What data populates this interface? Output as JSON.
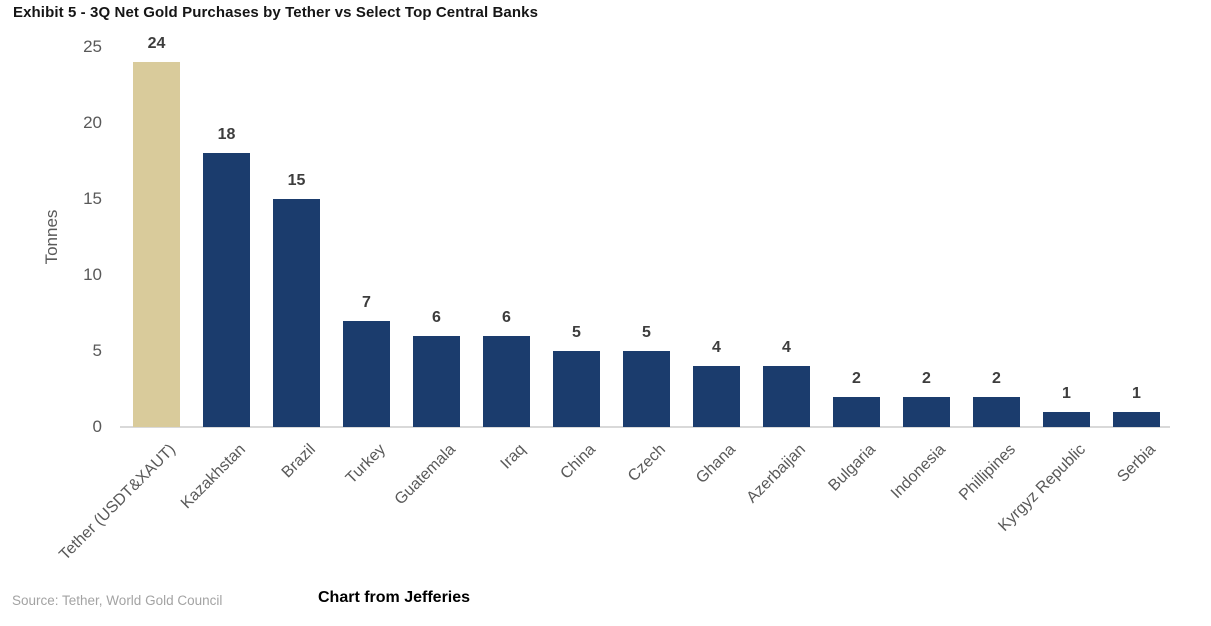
{
  "title": "Exhibit 5 - 3Q Net Gold Purchases by Tether vs Select Top Central Banks",
  "footer": {
    "source": "Source: Tether, World Gold Council",
    "credit": "Chart from Jefferies"
  },
  "chart_data": {
    "type": "bar",
    "title": "Exhibit 5 - 3Q Net Gold Purchases by Tether vs Select Top Central Banks",
    "xlabel": "",
    "ylabel": "Tonnes",
    "ylim": [
      0,
      25
    ],
    "yticks": [
      0,
      5,
      10,
      15,
      20,
      25
    ],
    "grid": false,
    "legend_position": "none",
    "categories": [
      "Tether (USDT&XAUT)",
      "Kazakhstan",
      "Brazil",
      "Turkey",
      "Guatemala",
      "Iraq",
      "China",
      "Czech",
      "Ghana",
      "Azerbaijan",
      "Bulgaria",
      "Indonesia",
      "Phillipines",
      "Kyrgyz Republic",
      "Serbia"
    ],
    "values": [
      24,
      18,
      15,
      7,
      6,
      6,
      5,
      5,
      4,
      4,
      2,
      2,
      2,
      1,
      1
    ],
    "data_labels_shown": true,
    "colors": {
      "highlight_bar": "#d9cb9b",
      "default_bar": "#1b3c6d",
      "value_label": "#3d3d3d",
      "axis_text": "#595959",
      "baseline": "#d9d9d9"
    },
    "highlight_index": 0
  }
}
